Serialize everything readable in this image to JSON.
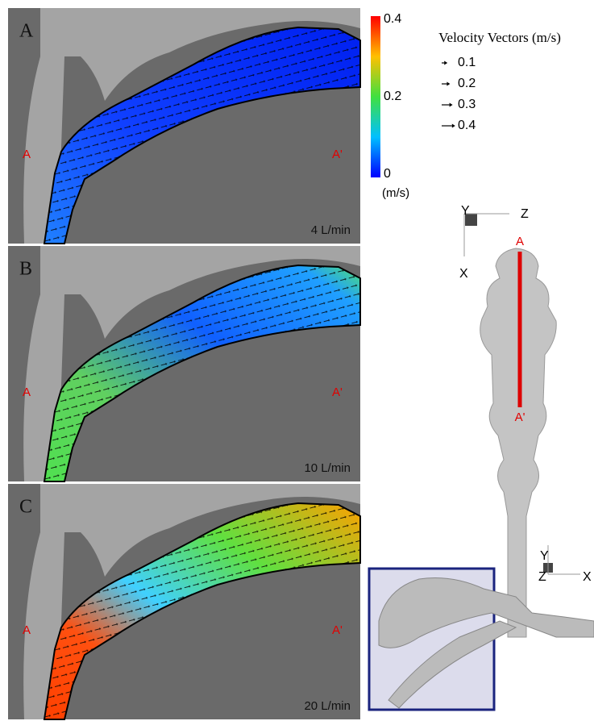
{
  "panels": [
    {
      "letter": "A",
      "left_label": "A",
      "right_label": "A'",
      "flow": "4 L/min"
    },
    {
      "letter": "B",
      "left_label": "A",
      "right_label": "A'",
      "flow": "10 L/min"
    },
    {
      "letter": "C",
      "left_label": "A",
      "right_label": "A'",
      "flow": "20 L/min"
    }
  ],
  "colorbar": {
    "ticks": [
      0.4,
      0.2,
      0
    ],
    "unit": "(m/s)"
  },
  "legend": {
    "title": "Velocity Vectors (m/s)",
    "entries": [
      0.1,
      0.2,
      0.3,
      0.4
    ]
  },
  "top_view": {
    "axes": {
      "up": "Y",
      "right": "Z",
      "down": "X"
    },
    "start": "A",
    "end": "A'"
  },
  "side_view": {
    "axes": {
      "up": "Y",
      "origin": "Z",
      "right": "X"
    }
  }
}
